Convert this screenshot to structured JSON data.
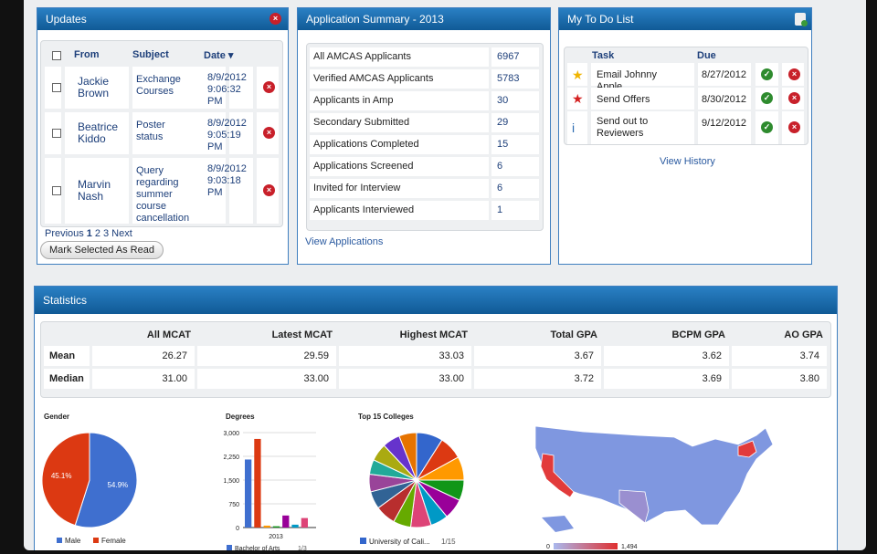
{
  "updates": {
    "title": "Updates",
    "columns": [
      "From",
      "Subject",
      "Date ▾"
    ],
    "rows": [
      {
        "from": "Jackie Brown",
        "subject": "Exchange Courses",
        "date": "8/9/2012 9:06:32 PM"
      },
      {
        "from": "Beatrice Kiddo",
        "subject": "Poster status",
        "date": "8/9/2012 9:05:19 PM"
      },
      {
        "from": "Marvin Nash",
        "subject": "Query regarding summer course cancellation",
        "date": "8/9/2012 9:03:18 PM"
      }
    ],
    "pagination": {
      "previous": "Previous",
      "pages": [
        "1",
        "2",
        "3"
      ],
      "next": "Next"
    },
    "button": "Mark Selected As Read"
  },
  "summary": {
    "title": "Application Summary - 2013",
    "rows": [
      {
        "label": "All AMCAS Applicants",
        "value": "6967"
      },
      {
        "label": "Verified AMCAS Applicants",
        "value": "5783"
      },
      {
        "label": "Applicants in Amp",
        "value": "30"
      },
      {
        "label": "Secondary Submitted",
        "value": "29"
      },
      {
        "label": "Applications Completed",
        "value": "15"
      },
      {
        "label": "Applications Screened",
        "value": "6"
      },
      {
        "label": "Invited for Interview",
        "value": "6"
      },
      {
        "label": "Applicants Interviewed",
        "value": "1"
      }
    ],
    "link": "View Applications"
  },
  "todo": {
    "title": "My To Do List",
    "columns": [
      "Task",
      "Due"
    ],
    "rows": [
      {
        "task": "Email Johnny Apple",
        "due": "8/27/2012"
      },
      {
        "task": "Send Offers",
        "due": "8/30/2012"
      },
      {
        "task": "Send out to Reviewers",
        "due": "9/12/2012"
      }
    ],
    "link": "View History"
  },
  "statistics": {
    "title": "Statistics",
    "columns": [
      "All MCAT",
      "Latest MCAT",
      "Highest MCAT",
      "Total GPA",
      "BCPM GPA",
      "AO GPA"
    ],
    "rows": [
      {
        "label": "Mean",
        "values": [
          "26.27",
          "29.59",
          "33.03",
          "3.67",
          "3.62",
          "3.74"
        ]
      },
      {
        "label": "Median",
        "values": [
          "31.00",
          "33.00",
          "33.00",
          "3.72",
          "3.69",
          "3.80"
        ]
      }
    ],
    "charts": [
      {
        "type": "pie",
        "title": "Gender",
        "categories": [
          "Male",
          "Female"
        ],
        "values": [
          54.9,
          45.1
        ],
        "value_labels": [
          "54.9%",
          "45.1%"
        ],
        "colors": [
          "#3f6fcf",
          "#dc3912"
        ]
      },
      {
        "type": "bar",
        "title": "Degrees",
        "categories": [
          "2013"
        ],
        "ylim": [
          0,
          3000
        ],
        "yticks": [
          0,
          {
            "value": 750,
            "label": "750"
          },
          {
            "value": 1500,
            "label": "1,500"
          },
          {
            "value": 2250,
            "label": "2,250"
          },
          {
            "value": 3000,
            "label": "3,000"
          }
        ],
        "series": [
          {
            "name": "Bachelor of Arts",
            "color": "#3f6fcf",
            "values": [
              2150
            ]
          },
          {
            "color": "#dc3912",
            "values": [
              2800
            ]
          },
          {
            "color": "#ff9900",
            "values": [
              60
            ]
          },
          {
            "color": "#109618",
            "values": [
              40
            ]
          },
          {
            "color": "#990099",
            "values": [
              380
            ]
          },
          {
            "color": "#0099c6",
            "values": [
              90
            ]
          },
          {
            "color": "#dd4477",
            "values": [
              300
            ]
          }
        ],
        "legend_page": "1/3"
      },
      {
        "type": "pie",
        "title": "Top 15 Colleges",
        "categories": [
          "University of Cali..."
        ],
        "values": [
          9,
          8,
          8,
          7,
          7,
          6,
          7,
          6,
          7,
          6,
          6,
          5,
          6,
          6,
          6
        ],
        "colors": [
          "#3366cc",
          "#dc3912",
          "#ff9900",
          "#109618",
          "#990099",
          "#0099c6",
          "#dd4477",
          "#66aa00",
          "#b82e2e",
          "#316395",
          "#994499",
          "#22aa99",
          "#aaaa11",
          "#6633cc",
          "#e67300"
        ],
        "legend_page": "1/15"
      },
      {
        "type": "map",
        "colorticks": [
          0,
          {
            "value": 1494,
            "label": "1,494"
          }
        ],
        "colors": [
          "#aab8ee",
          "#e03030"
        ]
      }
    ]
  }
}
